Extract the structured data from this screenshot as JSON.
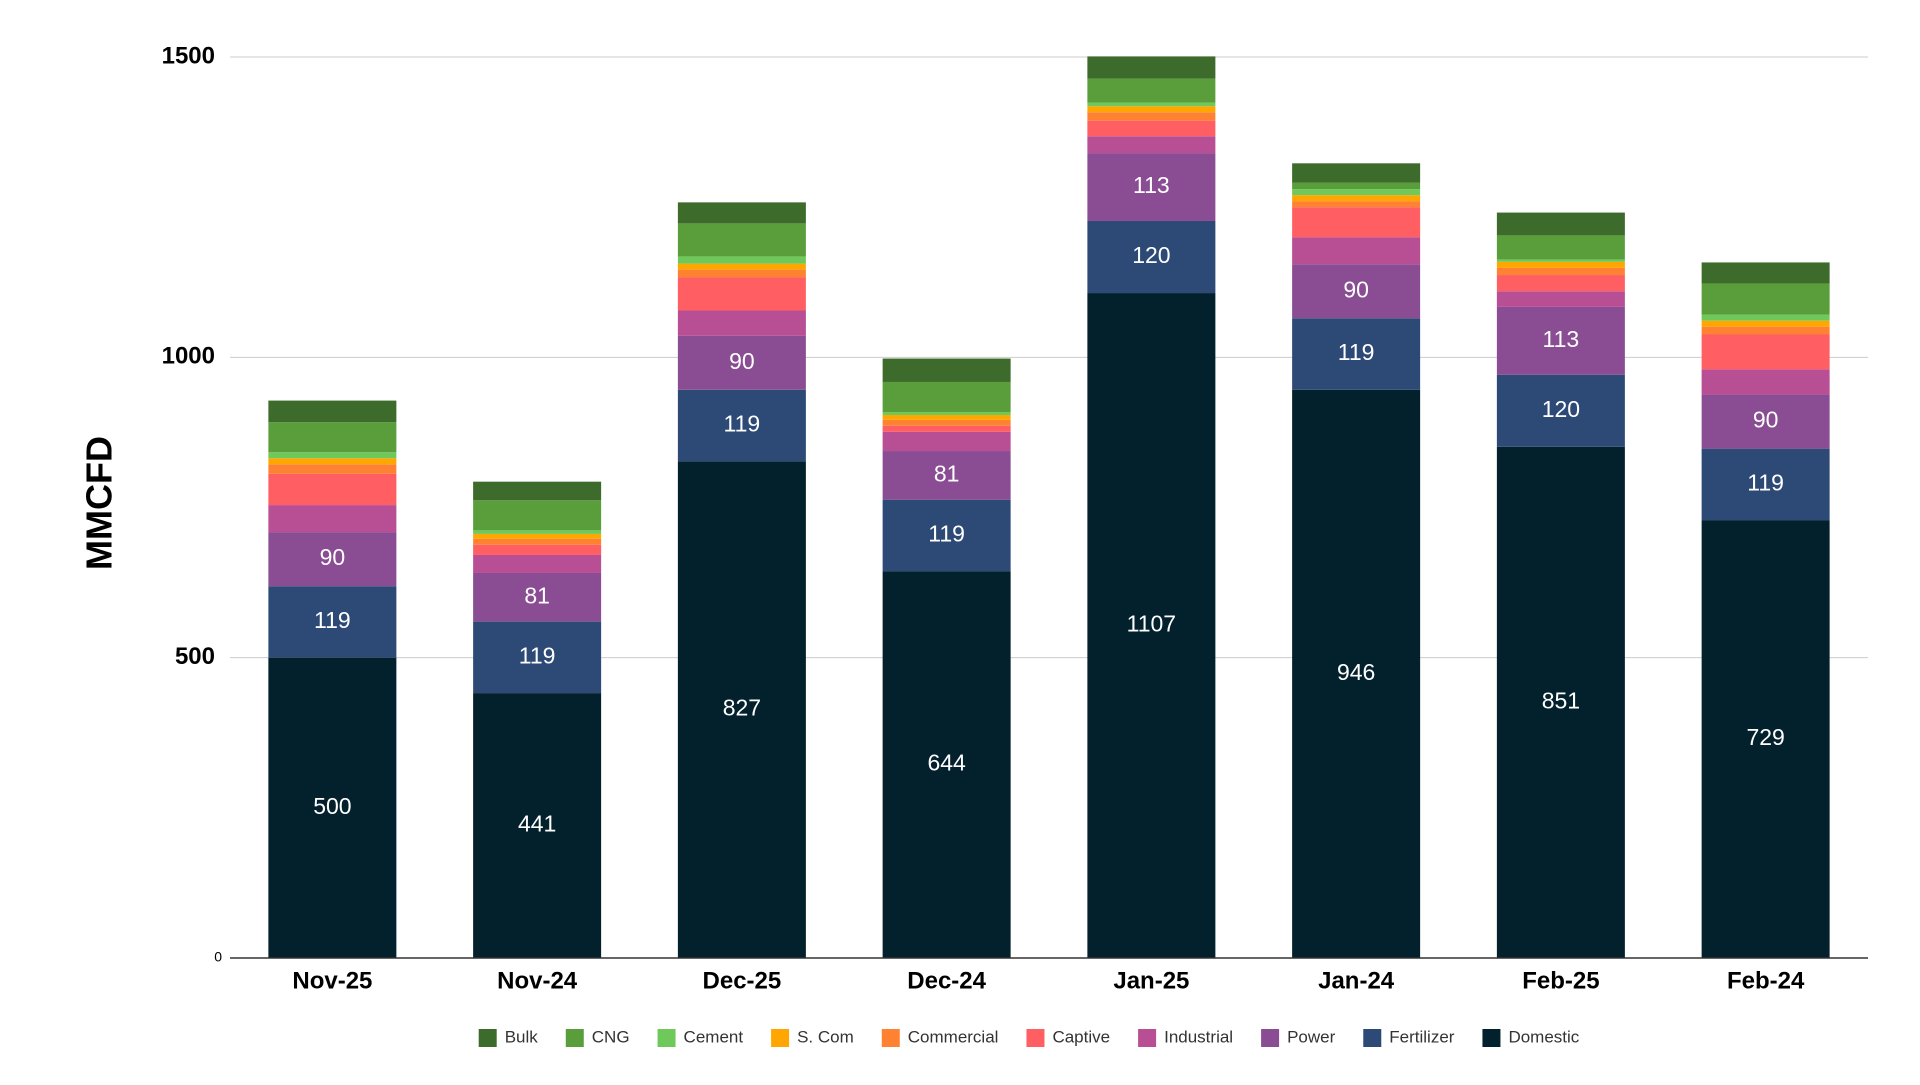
{
  "chart_data": {
    "type": "bar",
    "stacked": true,
    "title": "",
    "xlabel": "",
    "ylabel": "MMCFD",
    "ylim": [
      0,
      1500
    ],
    "yticks": [
      {
        "value": 0,
        "label": "0"
      },
      {
        "value": 500,
        "label": "500"
      },
      {
        "value": 1000,
        "label": "1000"
      },
      {
        "value": 1500,
        "label": "1500"
      }
    ],
    "grid": true,
    "legend_position": "bottom",
    "categories": [
      "Nov-25",
      "Nov-24",
      "Dec-25",
      "Dec-24",
      "Jan-25",
      "Jan-24",
      "Feb-25",
      "Feb-24"
    ],
    "series": [
      {
        "name": "Domestic",
        "color": "#03202d",
        "values": [
          500,
          441,
          827,
          644,
          1107,
          946,
          851,
          729
        ],
        "labels": [
          "500",
          "441",
          "827",
          "644",
          "1107",
          "946",
          "851",
          "729"
        ]
      },
      {
        "name": "Fertilizer",
        "color": "#2d4a76",
        "values": [
          119,
          119,
          119,
          119,
          120,
          119,
          120,
          119
        ],
        "labels": [
          "119",
          "119",
          "119",
          "119",
          "120",
          "119",
          "120",
          "119"
        ]
      },
      {
        "name": "Power",
        "color": "#8a4d93",
        "values": [
          90,
          81,
          90,
          81,
          113,
          90,
          113,
          90
        ],
        "labels": [
          "90",
          "81",
          "90",
          "81",
          "113",
          "90",
          "113",
          "90"
        ]
      },
      {
        "name": "Industrial",
        "color": "#b84e94",
        "values": [
          45,
          30,
          42,
          32,
          28,
          45,
          26,
          42
        ],
        "labels": [
          "",
          "",
          "",
          "",
          "",
          "",
          "",
          ""
        ]
      },
      {
        "name": "Captive",
        "color": "#ff5e62",
        "values": [
          52,
          17,
          55,
          10,
          26,
          50,
          27,
          58
        ],
        "labels": [
          "",
          "",
          "",
          "",
          "",
          "",
          "",
          ""
        ]
      },
      {
        "name": "Commercial",
        "color": "#ff8233",
        "values": [
          16,
          10,
          13,
          10,
          14,
          10,
          12,
          13
        ],
        "labels": [
          "",
          "",
          "",
          "",
          "",
          "",
          "",
          ""
        ]
      },
      {
        "name": "S. Com",
        "color": "#ffa600",
        "values": [
          10,
          8,
          10,
          8,
          10,
          10,
          10,
          10
        ],
        "labels": [
          "",
          "",
          "",
          "",
          "",
          "",
          "",
          ""
        ]
      },
      {
        "name": "Cement",
        "color": "#6ec95a",
        "values": [
          10,
          6,
          12,
          5,
          6,
          10,
          4,
          10
        ],
        "labels": [
          "",
          "",
          "",
          "",
          "",
          "",
          "",
          ""
        ]
      },
      {
        "name": "CNG",
        "color": "#5a9e3c",
        "values": [
          50,
          50,
          55,
          50,
          40,
          11,
          40,
          52
        ],
        "labels": [
          "",
          "",
          "",
          "",
          "",
          "",
          "",
          ""
        ]
      },
      {
        "name": "Bulk",
        "color": "#3d6b2b",
        "values": [
          36,
          31,
          35,
          39,
          37,
          32,
          38,
          35
        ],
        "labels": [
          "",
          "",
          "",
          "",
          "",
          "",
          "",
          ""
        ]
      }
    ],
    "legend_order": [
      "Bulk",
      "CNG",
      "Cement",
      "S. Com",
      "Commercial",
      "Captive",
      "Industrial",
      "Power",
      "Fertilizer",
      "Domestic"
    ]
  }
}
